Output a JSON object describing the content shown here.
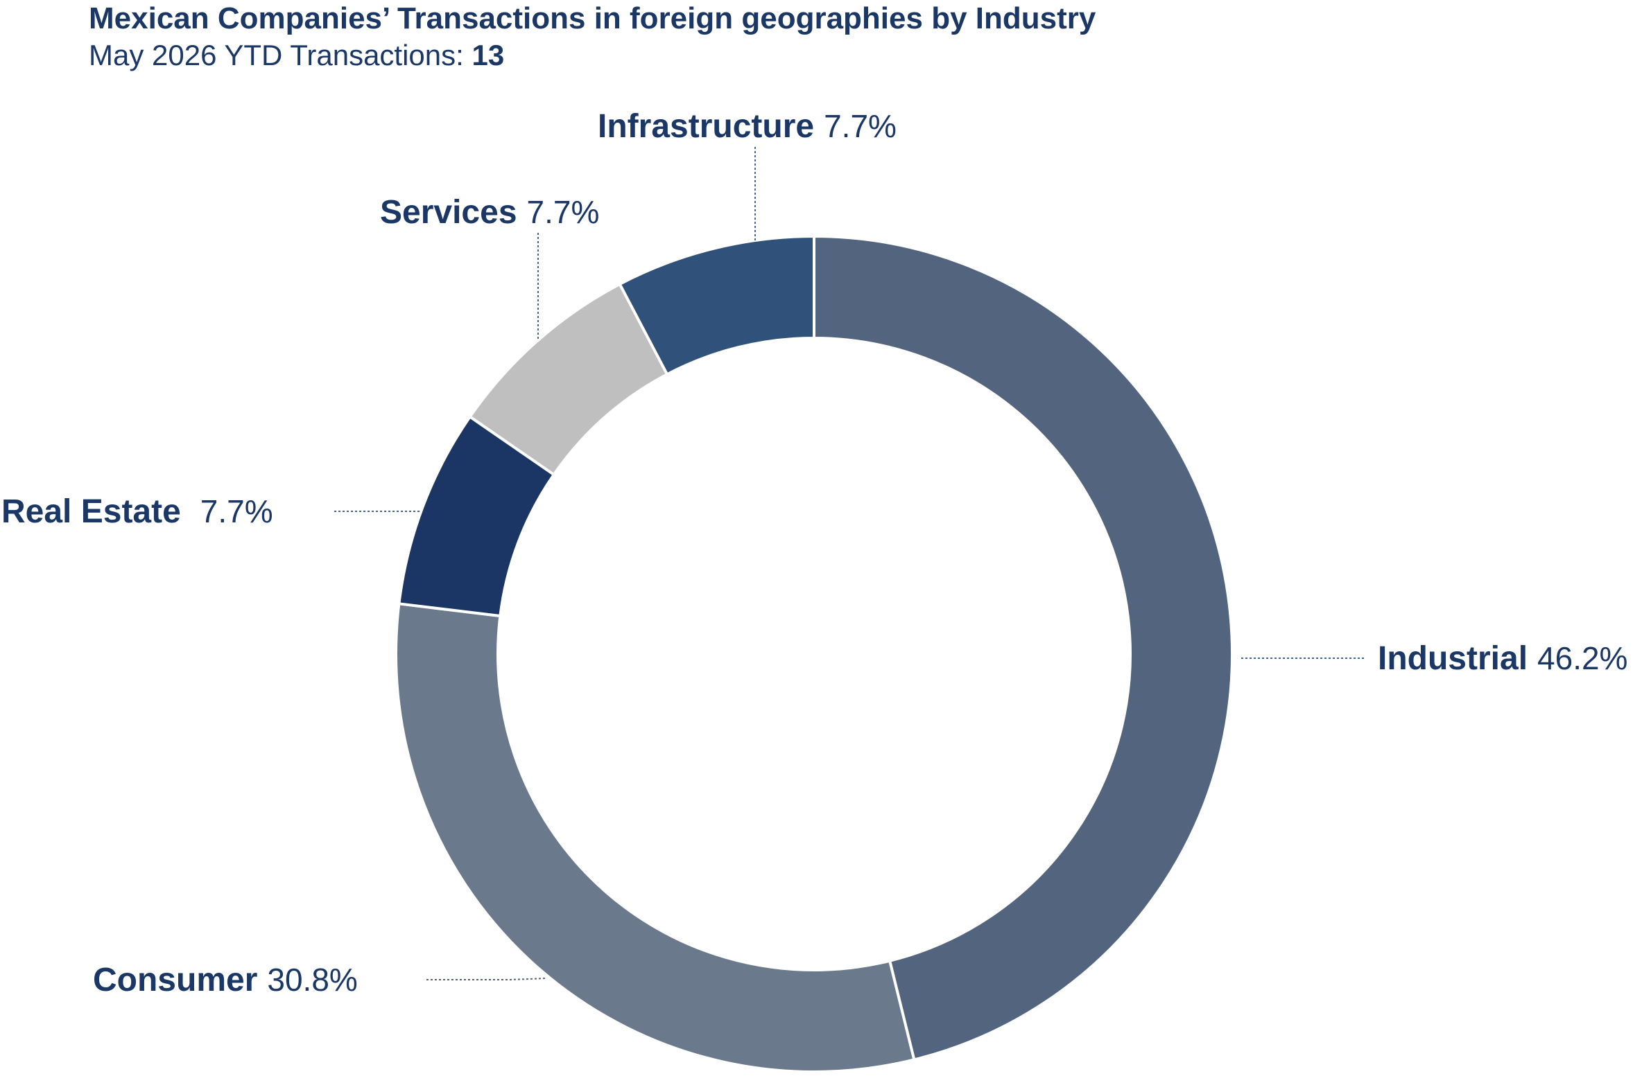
{
  "header": {
    "title": "Mexican Companies’ Transactions in foreign geographies by Industry",
    "subtitle_prefix": "May 2026 YTD Transactions:",
    "subtitle_count": "13"
  },
  "chart_data": {
    "type": "pie",
    "variant": "donut",
    "title": "Mexican Companies’ Transactions in foreign geographies by Industry",
    "subtitle": "May 2026 YTD Transactions: 13",
    "total": 13,
    "slices": [
      {
        "name": "Industrial",
        "value": 46.2,
        "label": "46.2%",
        "color": "#53647f"
      },
      {
        "name": "Consumer",
        "value": 30.8,
        "label": "30.8%",
        "color": "#6a7a8c"
      },
      {
        "name": "Real Estate",
        "value": 7.7,
        "label": "7.7%",
        "color": "#1b3564"
      },
      {
        "name": "Services",
        "value": 7.7,
        "label": "7.7%",
        "color": "#bfbfbf"
      },
      {
        "name": "Infrastructure",
        "value": 7.7,
        "label": "7.7%",
        "color": "#30527a"
      }
    ],
    "legend": "none",
    "label_color": "#1b3766"
  }
}
